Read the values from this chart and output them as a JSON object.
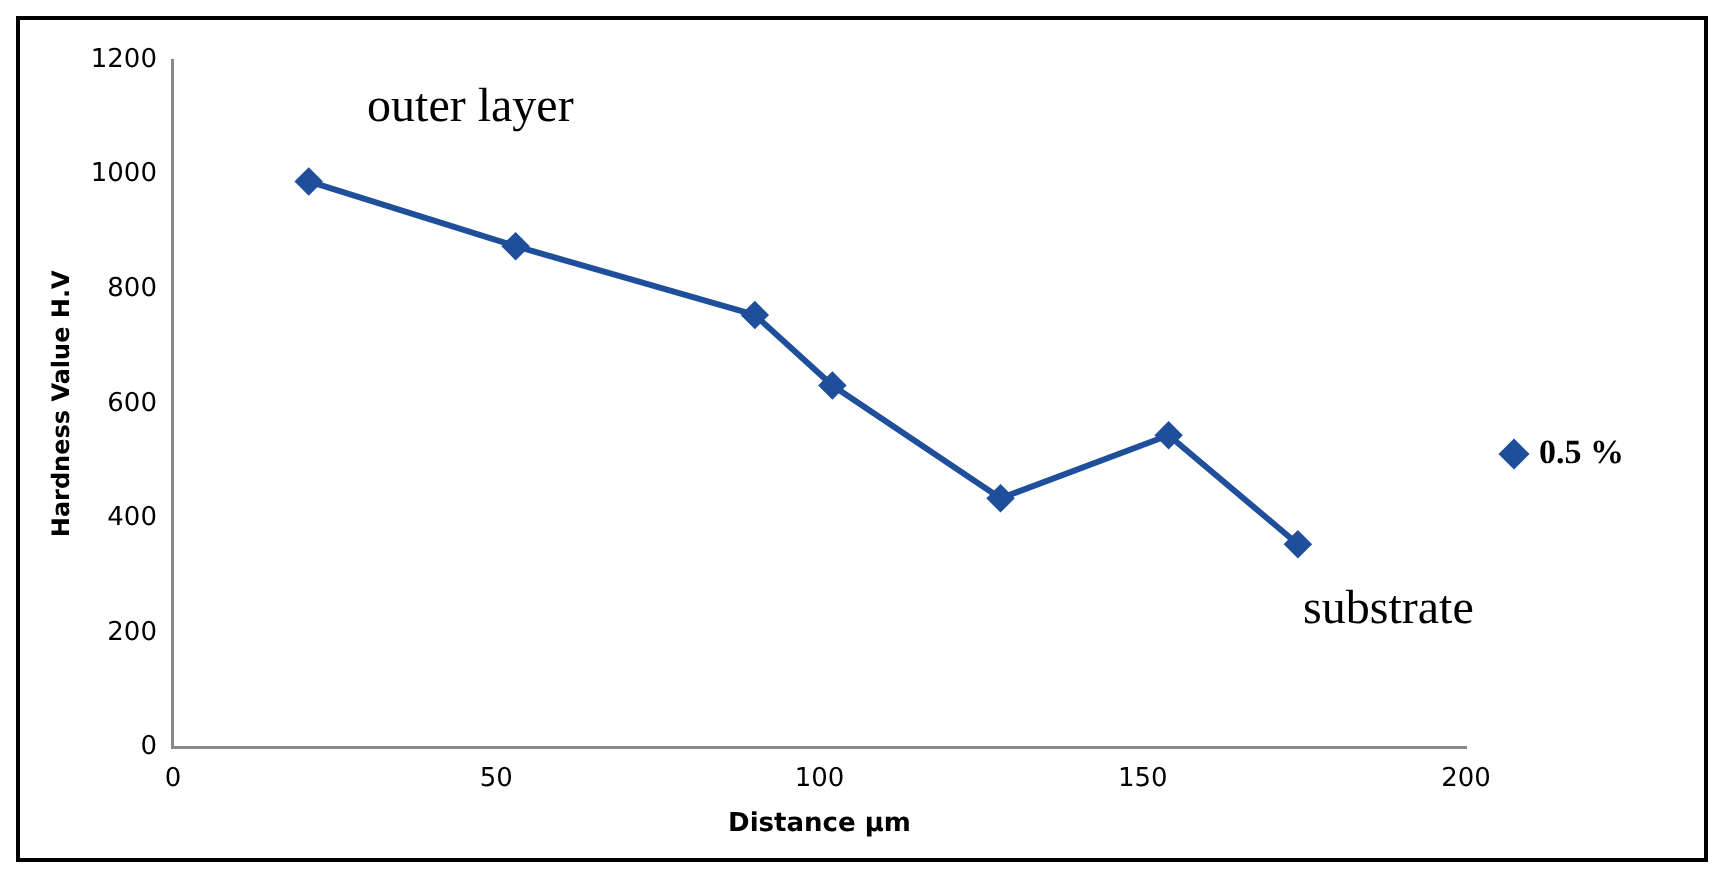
{
  "chart_data": {
    "type": "line",
    "xlabel": "Distance µm",
    "ylabel": "Hardness Value H.V",
    "x": [
      21,
      53,
      90,
      102,
      128,
      154,
      174
    ],
    "series": [
      {
        "name": "0.5 %",
        "color": "#1f4e9a",
        "values": [
          988,
          875,
          755,
          632,
          435,
          545,
          355
        ]
      }
    ],
    "xlim": [
      0,
      200
    ],
    "xticks": [
      0,
      50,
      100,
      150,
      200
    ],
    "ylim": [
      0,
      1200
    ],
    "yticks": [
      0,
      200,
      400,
      600,
      800,
      1000,
      1200
    ],
    "grid": false,
    "legend": "right",
    "marker": "diamond",
    "line_style": "solid",
    "annotations": [
      "outer layer",
      "substrate"
    ]
  }
}
